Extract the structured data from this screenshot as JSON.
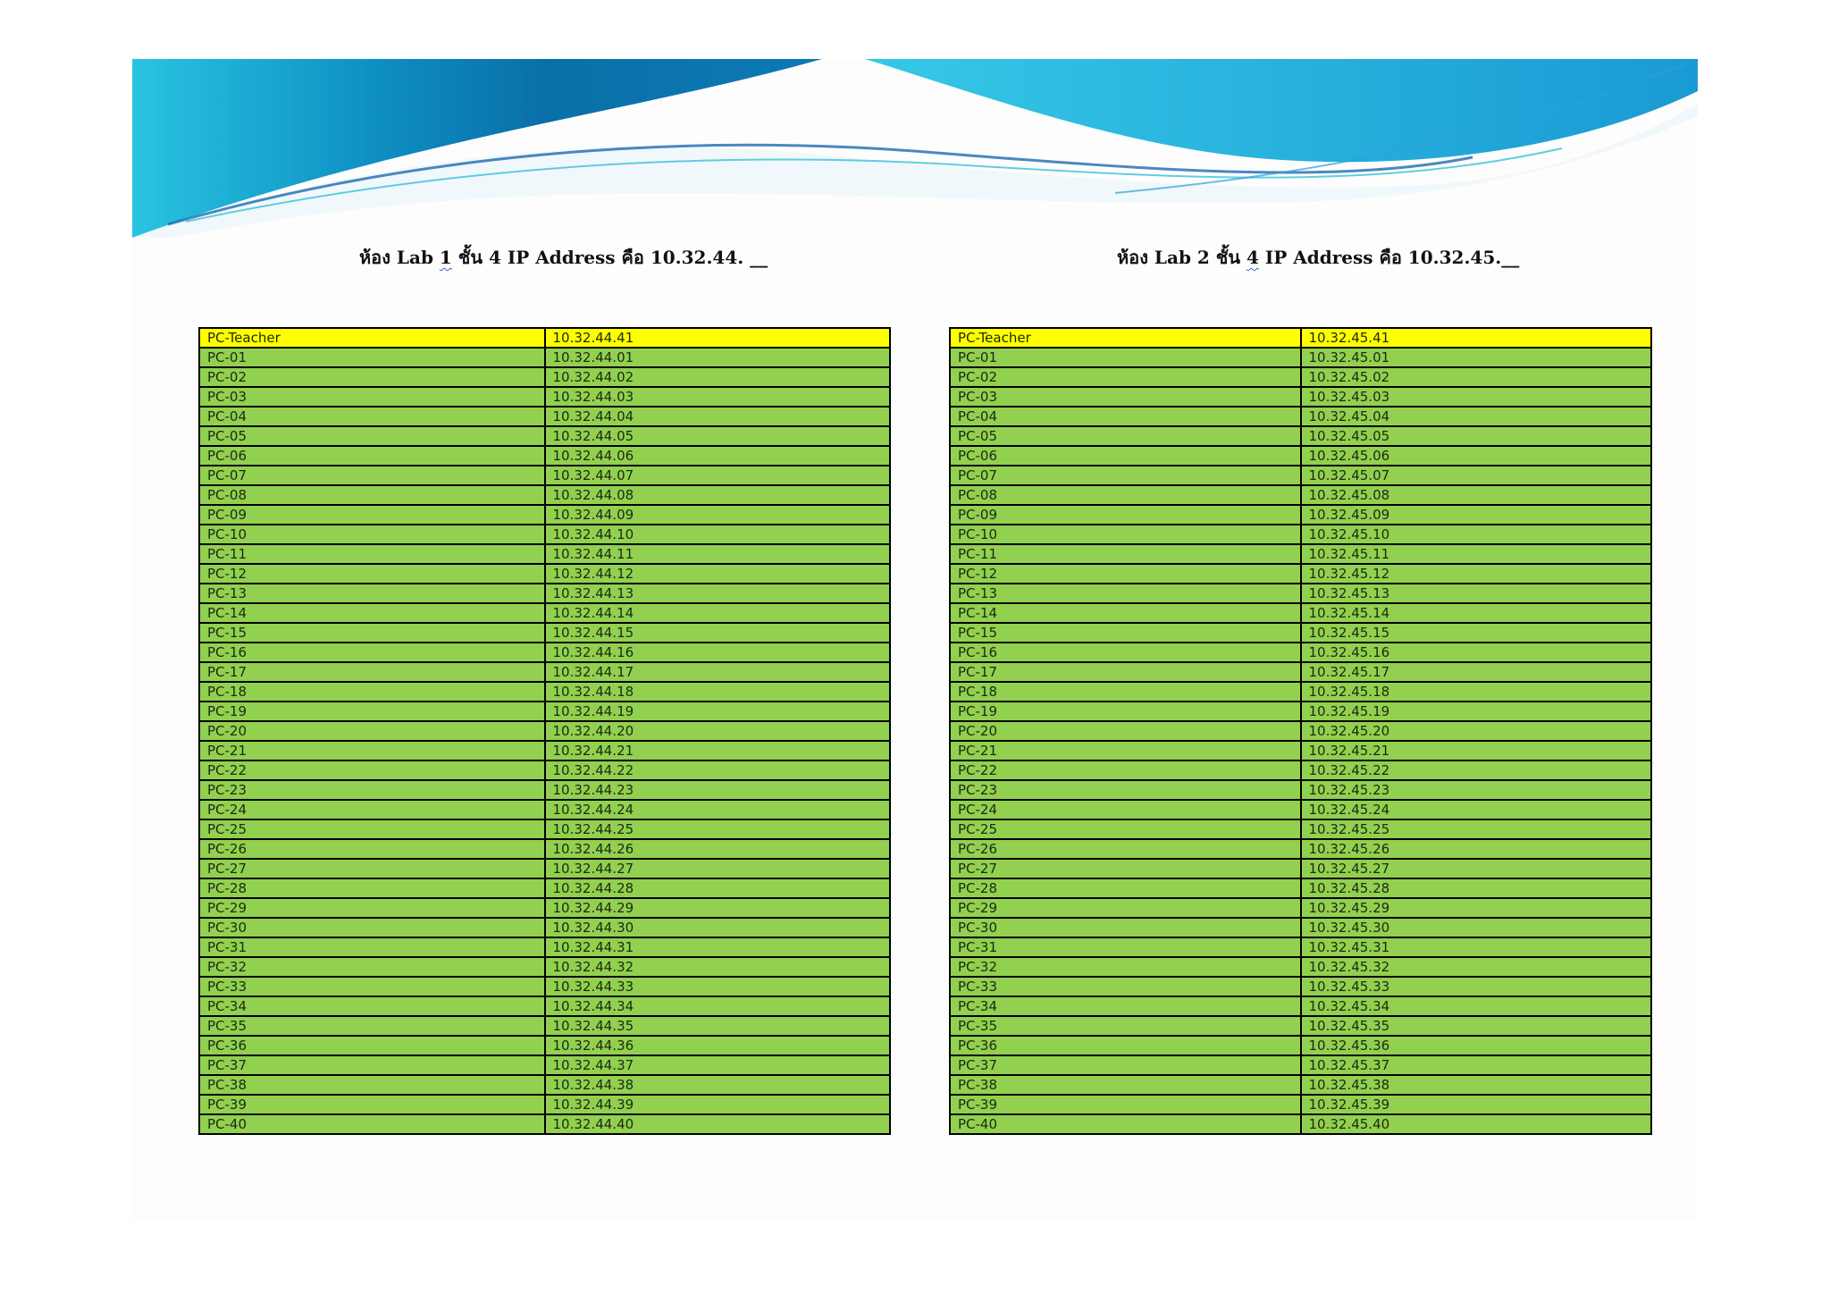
{
  "lab1": {
    "title_parts": [
      "ห้อง Lab ",
      "1",
      " ชั้น 4 IP Address คือ 10.32.44. __"
    ],
    "header": {
      "name": "PC-Teacher",
      "ip": "10.32.44.41"
    },
    "rows": [
      {
        "name": "PC-01",
        "ip": "10.32.44.01"
      },
      {
        "name": "PC-02",
        "ip": "10.32.44.02"
      },
      {
        "name": "PC-03",
        "ip": "10.32.44.03"
      },
      {
        "name": "PC-04",
        "ip": "10.32.44.04"
      },
      {
        "name": "PC-05",
        "ip": "10.32.44.05"
      },
      {
        "name": "PC-06",
        "ip": "10.32.44.06"
      },
      {
        "name": "PC-07",
        "ip": "10.32.44.07"
      },
      {
        "name": "PC-08",
        "ip": "10.32.44.08"
      },
      {
        "name": "PC-09",
        "ip": "10.32.44.09"
      },
      {
        "name": "PC-10",
        "ip": "10.32.44.10"
      },
      {
        "name": "PC-11",
        "ip": "10.32.44.11"
      },
      {
        "name": "PC-12",
        "ip": "10.32.44.12"
      },
      {
        "name": "PC-13",
        "ip": "10.32.44.13"
      },
      {
        "name": "PC-14",
        "ip": "10.32.44.14"
      },
      {
        "name": "PC-15",
        "ip": "10.32.44.15"
      },
      {
        "name": "PC-16",
        "ip": "10.32.44.16"
      },
      {
        "name": "PC-17",
        "ip": "10.32.44.17"
      },
      {
        "name": "PC-18",
        "ip": "10.32.44.18"
      },
      {
        "name": "PC-19",
        "ip": "10.32.44.19"
      },
      {
        "name": "PC-20",
        "ip": "10.32.44.20"
      },
      {
        "name": "PC-21",
        "ip": "10.32.44.21"
      },
      {
        "name": "PC-22",
        "ip": "10.32.44.22"
      },
      {
        "name": "PC-23",
        "ip": "10.32.44.23"
      },
      {
        "name": "PC-24",
        "ip": "10.32.44.24"
      },
      {
        "name": "PC-25",
        "ip": "10.32.44.25"
      },
      {
        "name": "PC-26",
        "ip": "10.32.44.26"
      },
      {
        "name": "PC-27",
        "ip": "10.32.44.27"
      },
      {
        "name": "PC-28",
        "ip": "10.32.44.28"
      },
      {
        "name": "PC-29",
        "ip": "10.32.44.29"
      },
      {
        "name": "PC-30",
        "ip": "10.32.44.30"
      },
      {
        "name": "PC-31",
        "ip": "10.32.44.31"
      },
      {
        "name": "PC-32",
        "ip": "10.32.44.32"
      },
      {
        "name": "PC-33",
        "ip": "10.32.44.33"
      },
      {
        "name": "PC-34",
        "ip": "10.32.44.34"
      },
      {
        "name": "PC-35",
        "ip": "10.32.44.35"
      },
      {
        "name": "PC-36",
        "ip": "10.32.44.36"
      },
      {
        "name": "PC-37",
        "ip": "10.32.44.37"
      },
      {
        "name": "PC-38",
        "ip": "10.32.44.38"
      },
      {
        "name": "PC-39",
        "ip": "10.32.44.39"
      },
      {
        "name": "PC-40",
        "ip": "10.32.44.40"
      }
    ]
  },
  "lab2": {
    "title_parts": [
      "ห้อง Lab 2 ชั้น ",
      "4",
      " IP Address คือ 10.32.45.__"
    ],
    "header": {
      "name": "PC-Teacher",
      "ip": "10.32.45.41"
    },
    "rows": [
      {
        "name": "PC-01",
        "ip": "10.32.45.01"
      },
      {
        "name": "PC-02",
        "ip": "10.32.45.02"
      },
      {
        "name": "PC-03",
        "ip": "10.32.45.03"
      },
      {
        "name": "PC-04",
        "ip": "10.32.45.04"
      },
      {
        "name": "PC-05",
        "ip": "10.32.45.05"
      },
      {
        "name": "PC-06",
        "ip": "10.32.45.06"
      },
      {
        "name": "PC-07",
        "ip": "10.32.45.07"
      },
      {
        "name": "PC-08",
        "ip": "10.32.45.08"
      },
      {
        "name": "PC-09",
        "ip": "10.32.45.09"
      },
      {
        "name": "PC-10",
        "ip": "10.32.45.10"
      },
      {
        "name": "PC-11",
        "ip": "10.32.45.11"
      },
      {
        "name": "PC-12",
        "ip": "10.32.45.12"
      },
      {
        "name": "PC-13",
        "ip": "10.32.45.13"
      },
      {
        "name": "PC-14",
        "ip": "10.32.45.14"
      },
      {
        "name": "PC-15",
        "ip": "10.32.45.15"
      },
      {
        "name": "PC-16",
        "ip": "10.32.45.16"
      },
      {
        "name": "PC-17",
        "ip": "10.32.45.17"
      },
      {
        "name": "PC-18",
        "ip": "10.32.45.18"
      },
      {
        "name": "PC-19",
        "ip": "10.32.45.19"
      },
      {
        "name": "PC-20",
        "ip": "10.32.45.20"
      },
      {
        "name": "PC-21",
        "ip": "10.32.45.21"
      },
      {
        "name": "PC-22",
        "ip": "10.32.45.22"
      },
      {
        "name": "PC-23",
        "ip": "10.32.45.23"
      },
      {
        "name": "PC-24",
        "ip": "10.32.45.24"
      },
      {
        "name": "PC-25",
        "ip": "10.32.45.25"
      },
      {
        "name": "PC-26",
        "ip": "10.32.45.26"
      },
      {
        "name": "PC-27",
        "ip": "10.32.45.27"
      },
      {
        "name": "PC-28",
        "ip": "10.32.45.28"
      },
      {
        "name": "PC-29",
        "ip": "10.32.45.29"
      },
      {
        "name": "PC-30",
        "ip": "10.32.45.30"
      },
      {
        "name": "PC-31",
        "ip": "10.32.45.31"
      },
      {
        "name": "PC-32",
        "ip": "10.32.45.32"
      },
      {
        "name": "PC-33",
        "ip": "10.32.45.33"
      },
      {
        "name": "PC-34",
        "ip": "10.32.45.34"
      },
      {
        "name": "PC-35",
        "ip": "10.32.45.35"
      },
      {
        "name": "PC-36",
        "ip": "10.32.45.36"
      },
      {
        "name": "PC-37",
        "ip": "10.32.45.37"
      },
      {
        "name": "PC-38",
        "ip": "10.32.45.38"
      },
      {
        "name": "PC-39",
        "ip": "10.32.45.39"
      },
      {
        "name": "PC-40",
        "ip": "10.32.45.40"
      }
    ]
  },
  "colors": {
    "header_row": "#ffff00",
    "data_row": "#92d050",
    "border": "#000000",
    "banner_dark": "#0a82b8",
    "banner_light": "#2ec4e0"
  }
}
